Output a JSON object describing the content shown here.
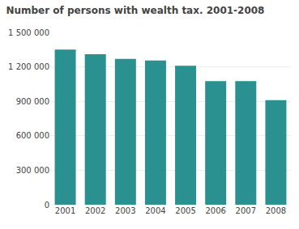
{
  "chart_data": {
    "type": "bar",
    "title": "Number of persons with wealth tax. 2001-2008",
    "categories": [
      "2001",
      "2002",
      "2003",
      "2004",
      "2005",
      "2006",
      "2007",
      "2008"
    ],
    "values": [
      1350000,
      1310000,
      1270000,
      1255000,
      1210000,
      1075000,
      1075000,
      910000
    ],
    "color": "#2a9090",
    "ylim": [
      0,
      1500000
    ],
    "yticks": [
      0,
      {
        "value": 300000,
        "label": "300 000"
      },
      {
        "value": 600000,
        "label": "600 000"
      },
      {
        "value": 900000,
        "label": "900 000"
      },
      {
        "value": 1200000,
        "label": "1 200 000"
      },
      {
        "value": 1500000,
        "label": "1 500 000"
      }
    ],
    "grid": true
  }
}
